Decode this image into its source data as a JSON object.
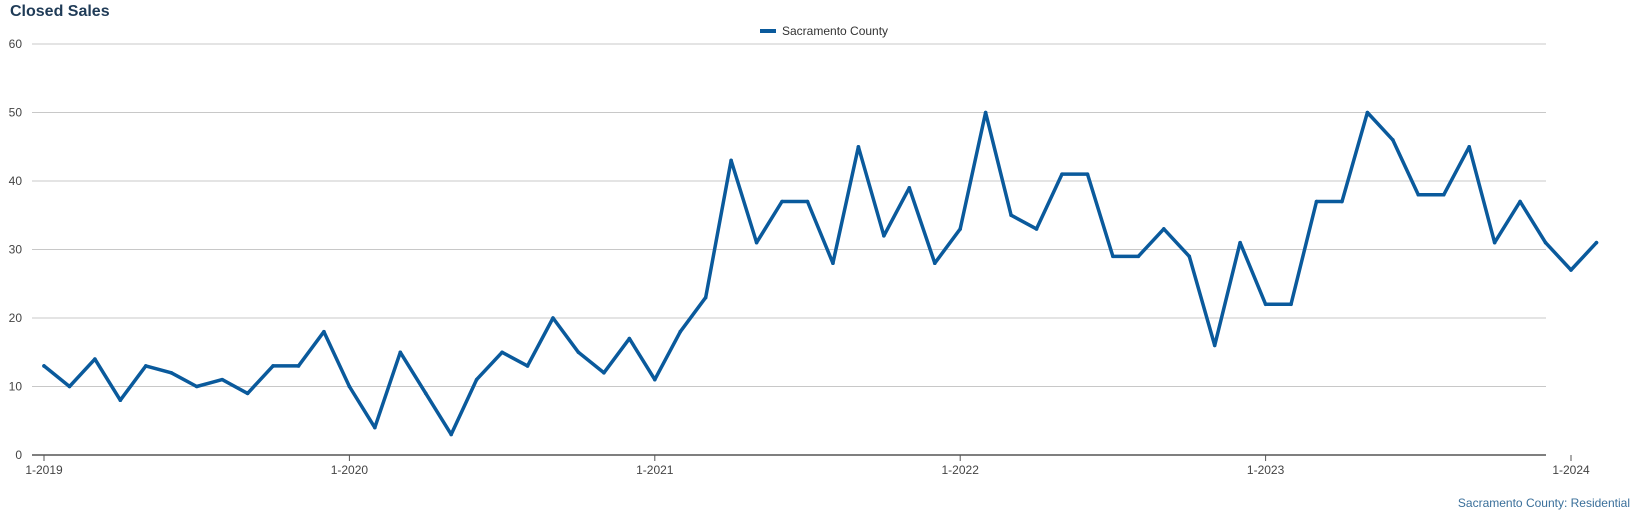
{
  "title": "Closed Sales",
  "footer": "Sacramento County: Residential",
  "chart_data": {
    "type": "line",
    "title": "Closed Sales",
    "xlabel": "",
    "ylabel": "",
    "ylim": [
      0,
      60
    ],
    "yticks": [
      0,
      10,
      20,
      30,
      40,
      50,
      60
    ],
    "xtick_labels": [
      "1-2019",
      "1-2020",
      "1-2021",
      "1-2022",
      "1-2023",
      "1-2024"
    ],
    "legend_position": "top-center",
    "grid": true,
    "series": [
      {
        "name": "Sacramento County",
        "color": "#0a5a9c",
        "values": [
          13,
          10,
          14,
          8,
          13,
          12,
          10,
          11,
          9,
          13,
          13,
          18,
          10,
          4,
          15,
          9,
          3,
          11,
          15,
          13,
          20,
          15,
          12,
          17,
          11,
          18,
          23,
          43,
          31,
          37,
          37,
          28,
          45,
          32,
          39,
          28,
          33,
          50,
          35,
          33,
          41,
          41,
          29,
          29,
          33,
          29,
          16,
          31,
          22,
          22,
          37,
          37,
          50,
          46,
          38,
          38,
          45,
          31,
          37,
          31,
          27,
          31
        ]
      }
    ]
  }
}
